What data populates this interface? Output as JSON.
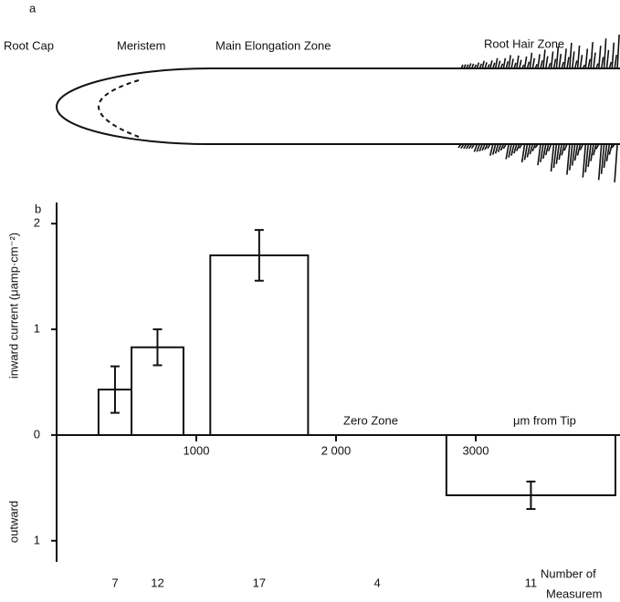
{
  "diagram": {
    "label": "a",
    "root_cap": "Root Cap",
    "meristem": "Meristem",
    "elongation": "Main Elongation Zone",
    "root_hair": "Root Hair Zone"
  },
  "chart_data": {
    "type": "bar",
    "label": "b",
    "ylabel": "inward current (μamp·cm⁻²)",
    "ylabel_negative": "outward",
    "x_start": [
      300,
      536,
      1100,
      1800,
      2790
    ],
    "x_end": [
      536,
      908,
      1800,
      2790,
      4000
    ],
    "values": [
      0.43,
      0.83,
      1.7,
      0,
      -0.57
    ],
    "errors": [
      0.22,
      0.17,
      0.24,
      null,
      0.13
    ],
    "counts": [
      7,
      12,
      17,
      4,
      11
    ],
    "counts_label": [
      "Number of",
      "Measurem"
    ],
    "annotations": [
      "Zero Zone",
      "μm from Tip"
    ],
    "color": "#111111",
    "xlim": [
      0,
      4000
    ],
    "xticks": [
      1000,
      {
        "value": 2000,
        "label": "2 000"
      },
      3000
    ],
    "ylim": [
      -1.2,
      2.2
    ],
    "yticks": [
      {
        "value": -1,
        "label": "1"
      },
      0,
      1,
      2
    ]
  }
}
